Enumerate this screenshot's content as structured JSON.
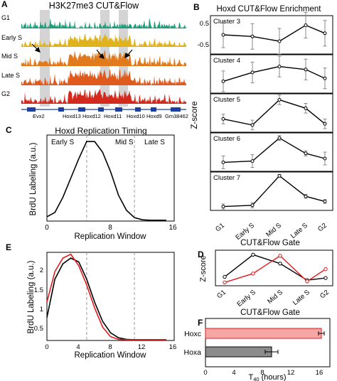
{
  "colors": {
    "track_g1": "#1e9e7a",
    "track_early": "#e0b21b",
    "track_mid": "#e07a1d",
    "track_late": "#df5a1c",
    "track_g2": "#d42a1d",
    "highlight": "#cfcfcf",
    "gene": "#1d3fa0",
    "red_series": "#e41a1c",
    "black_series": "#000000",
    "hoxc_bar": "#f7a6a6",
    "hoxa_bar": "#8c8c8c"
  },
  "panel_a": {
    "letter": "A",
    "title": "H3K27me3 CUT&Flow",
    "tracks": [
      "G1",
      "Early S",
      "Mid S",
      "Late S",
      "G2"
    ],
    "genes": [
      "Evx2",
      "Hoxd13",
      "Hoxd12",
      "Hoxd11",
      "Hoxd10",
      "Hoxd9",
      "Gm38462"
    ]
  },
  "panel_b": {
    "letter": "B",
    "title": "Hoxd CUT&Flow Enrichment",
    "ylabel": "Z-score",
    "xlabel": "CUT&Flow Gate",
    "yticks": [
      "0.5",
      "-0.5"
    ],
    "gates": [
      "G1",
      "Early S",
      "Mid S",
      "Late S",
      "G2"
    ]
  },
  "panel_c": {
    "letter": "C",
    "title": "Hoxd Replication Timing",
    "phase_labels": [
      "Early S",
      "Mid S",
      "Late S"
    ],
    "xticks": [
      "0",
      "8",
      "16"
    ]
  },
  "panel_e": {
    "letter": "E",
    "yticks": [
      "2",
      "1.5",
      "1",
      "0.5"
    ],
    "xticks": [
      "0",
      "4",
      "8",
      "12",
      "16"
    ]
  },
  "panel_d": {
    "letter": "D",
    "ylabel": "Z-score",
    "xlabel": "CUT&Flow Gate",
    "gates": [
      "G1",
      "Early S",
      "Mid S",
      "Late S",
      "G2"
    ]
  },
  "panel_f": {
    "letter": "F",
    "xticks": [
      "0",
      "4",
      "8",
      "12",
      "16"
    ]
  },
  "chart_data": [
    {
      "panel": "B",
      "type": "line",
      "title": "Hoxd CUT&Flow Enrichment",
      "xlabel": "CUT&Flow Gate",
      "ylabel": "Z-score",
      "categories": [
        "G1",
        "Early S",
        "Mid S",
        "Late S",
        "G2"
      ],
      "series": [
        {
          "name": "Cluster 3",
          "values": [
            0.0,
            -0.1,
            -0.4,
            0.6,
            0.1
          ],
          "errors": [
            0.8,
            0.8,
            0.8,
            0.8,
            0.8
          ],
          "ylim": [
            -1.2,
            1.2
          ]
        },
        {
          "name": "Cluster 4",
          "values": [
            -0.5,
            0.1,
            0.5,
            0.3,
            -0.3
          ],
          "errors": [
            0.7,
            0.7,
            0.7,
            0.7,
            0.7
          ],
          "ylim": [
            -1.3,
            1.3
          ]
        },
        {
          "name": "Cluster 5",
          "values": [
            -0.3,
            -0.8,
            1.3,
            0.6,
            -0.7
          ],
          "errors": [
            0.4,
            0.4,
            0.4,
            0.4,
            0.4
          ],
          "ylim": [
            -1.4,
            1.8
          ]
        },
        {
          "name": "Cluster 6",
          "values": [
            -0.6,
            -0.5,
            1.3,
            0.1,
            -0.3
          ],
          "errors": [
            0.5,
            0.5,
            0.2,
            0.2,
            0.5
          ],
          "ylim": [
            -1.3,
            1.7
          ]
        },
        {
          "name": "Cluster 7",
          "values": [
            -0.7,
            -0.6,
            1.7,
            0.1,
            -0.3
          ],
          "errors": [
            0.2,
            0.2,
            0.1,
            0.15,
            0.15
          ],
          "ylim": [
            -1.0,
            2.0
          ]
        }
      ]
    },
    {
      "panel": "C",
      "type": "line",
      "title": "Hoxd Replication Timing",
      "xlabel": "Replication Window",
      "ylabel": "BrdU Labeling (a.u.)",
      "xlim": [
        0,
        16
      ],
      "ylim": [
        0,
        2
      ],
      "x": [
        0,
        1,
        2,
        3,
        4,
        5,
        6,
        7,
        8,
        9,
        10,
        11,
        12,
        13,
        14,
        15
      ],
      "values": [
        0.1,
        0.2,
        0.55,
        1.0,
        1.45,
        1.85,
        1.85,
        1.6,
        1.15,
        0.6,
        0.25,
        0.08,
        0.03,
        0.02,
        0.02,
        0.02
      ],
      "vlines": [
        5,
        11
      ]
    },
    {
      "panel": "E",
      "type": "line",
      "xlabel": "Replication Window",
      "ylabel": "BrdU Labeling (a.u.)",
      "xlim": [
        0,
        16
      ],
      "ylim": [
        0,
        2.3
      ],
      "x": [
        0,
        1,
        2,
        3,
        4,
        5,
        6,
        7,
        8,
        9,
        10,
        11,
        12,
        13,
        14,
        15
      ],
      "series": [
        {
          "color": "#000000",
          "values": [
            0.6,
            1.6,
            2.0,
            2.15,
            2.05,
            1.6,
            1.0,
            0.5,
            0.2,
            0.07,
            0.03,
            0.02,
            0.02,
            0.02,
            0.02,
            0.02
          ]
        },
        {
          "color": "#e41a1c",
          "values": [
            1.0,
            1.8,
            2.15,
            2.25,
            1.95,
            1.45,
            0.85,
            0.35,
            0.1,
            0.03,
            0.02,
            0.02,
            0.02,
            0.02,
            0.02,
            0.02
          ]
        }
      ],
      "vlines": [
        5,
        11
      ]
    },
    {
      "panel": "D",
      "type": "line",
      "xlabel": "CUT&Flow Gate",
      "ylabel": "Z-score",
      "categories": [
        "G1",
        "Early S",
        "Mid S",
        "Late S",
        "G2"
      ],
      "ylim": [
        -1.4,
        1.8
      ],
      "series": [
        {
          "color": "#000000",
          "values": [
            -0.6,
            1.4,
            0.6,
            -0.9,
            -0.7
          ]
        },
        {
          "color": "#e41a1c",
          "values": [
            -1.1,
            -0.3,
            1.3,
            -1.0,
            0.1
          ]
        }
      ]
    },
    {
      "panel": "F",
      "type": "bar",
      "xlabel": "T40 (hours)",
      "categories": [
        "Hoxc",
        "Hoxa"
      ],
      "values": [
        16.3,
        9.3
      ],
      "errors": [
        0.4,
        0.9
      ],
      "xlim": [
        0,
        17.5
      ]
    }
  ],
  "labels": {
    "brdu_ylabel": "BrdU Labeling (a.u.)",
    "repwin_xlabel": "Replication Window",
    "f_xlabel_main": "T",
    "f_xlabel_sub": "40",
    "f_xlabel_tail": " (hours)"
  }
}
